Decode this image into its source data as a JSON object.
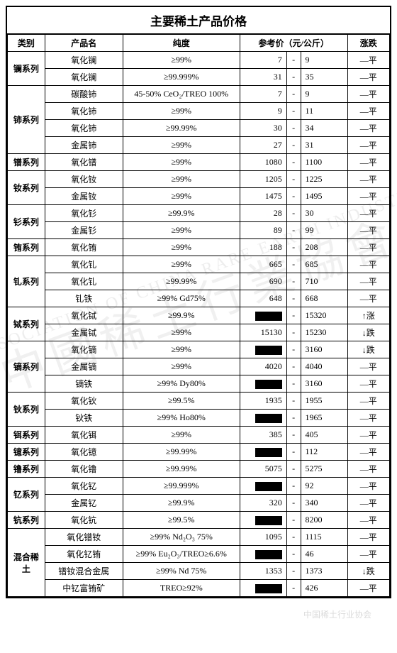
{
  "title": "主要稀土产品价格",
  "headers": {
    "category": "类别",
    "product": "产品名",
    "purity": "纯度",
    "price": "参考价（元/公斤）",
    "trend": "涨跌"
  },
  "trend_labels": {
    "flat": "—平",
    "up": "↑涨",
    "down": "↓跌"
  },
  "watermark_main": "中國稀土行業協會",
  "watermark_sub": "ASSOCIATION OF CHINA RARE EARTH INDUSTRY",
  "footer_line1": "中国稀土行业协会",
  "footer_line2": "",
  "groups": [
    {
      "category": "镧系列",
      "rows": [
        {
          "name": "氧化镧",
          "purity": "≥99%",
          "low": "7",
          "high": "9",
          "trend": "flat"
        },
        {
          "name": "氧化镧",
          "purity": "≥99.999%",
          "low": "31",
          "high": "35",
          "trend": "flat"
        }
      ]
    },
    {
      "category": "铈系列",
      "rows": [
        {
          "name": "碳酸铈",
          "purity": "45-50% CeO₂/TREO 100%",
          "low": "7",
          "high": "9",
          "trend": "flat"
        },
        {
          "name": "氧化铈",
          "purity": "≥99%",
          "low": "9",
          "high": "11",
          "trend": "flat"
        },
        {
          "name": "氧化铈",
          "purity": "≥99.99%",
          "low": "30",
          "high": "34",
          "trend": "flat"
        },
        {
          "name": "金属铈",
          "purity": "≥99%",
          "low": "27",
          "high": "31",
          "trend": "flat"
        }
      ]
    },
    {
      "category": "镨系列",
      "rows": [
        {
          "name": "氧化镨",
          "purity": "≥99%",
          "low": "1080",
          "high": "1100",
          "trend": "flat"
        }
      ]
    },
    {
      "category": "钕系列",
      "rows": [
        {
          "name": "氧化钕",
          "purity": "≥99%",
          "low": "1205",
          "high": "1225",
          "trend": "flat"
        },
        {
          "name": "金属钕",
          "purity": "≥99%",
          "low": "1475",
          "high": "1495",
          "trend": "flat"
        }
      ]
    },
    {
      "category": "钐系列",
      "rows": [
        {
          "name": "氧化钐",
          "purity": "≥99.9%",
          "low": "28",
          "high": "30",
          "trend": "flat"
        },
        {
          "name": "金属钐",
          "purity": "≥99%",
          "low": "89",
          "high": "99",
          "trend": "flat"
        }
      ]
    },
    {
      "category": "铕系列",
      "rows": [
        {
          "name": "氧化铕",
          "purity": "≥99%",
          "low": "188",
          "high": "208",
          "trend": "flat"
        }
      ]
    },
    {
      "category": "钆系列",
      "rows": [
        {
          "name": "氧化钆",
          "purity": "≥99%",
          "low": "665",
          "high": "685",
          "trend": "flat"
        },
        {
          "name": "氧化钆",
          "purity": "≥99.99%",
          "low": "690",
          "high": "710",
          "trend": "flat"
        },
        {
          "name": "钆铁",
          "purity": "≥99% Gd75%",
          "low": "648",
          "high": "668",
          "trend": "flat"
        }
      ]
    },
    {
      "category": "铽系列",
      "rows": [
        {
          "name": "氧化铽",
          "purity": "≥99.9%",
          "low": null,
          "high": "15320",
          "trend": "up"
        },
        {
          "name": "金属铽",
          "purity": "≥99%",
          "low": "15130",
          "high": "15230",
          "trend": "down"
        }
      ]
    },
    {
      "category": "镝系列",
      "rows": [
        {
          "name": "氧化镝",
          "purity": "≥99%",
          "low": null,
          "high": "3160",
          "trend": "down"
        },
        {
          "name": "金属镝",
          "purity": "≥99%",
          "low": "4020",
          "high": "4040",
          "trend": "flat"
        },
        {
          "name": "镝铁",
          "purity": "≥99% Dy80%",
          "low": null,
          "high": "3160",
          "trend": "flat"
        }
      ]
    },
    {
      "category": "钬系列",
      "rows": [
        {
          "name": "氧化钬",
          "purity": "≥99.5%",
          "low": "1935",
          "high": "1955",
          "trend": "flat"
        },
        {
          "name": "钬铁",
          "purity": "≥99% Ho80%",
          "low": null,
          "high": "1965",
          "trend": "flat"
        }
      ]
    },
    {
      "category": "铒系列",
      "rows": [
        {
          "name": "氧化铒",
          "purity": "≥99%",
          "low": "385",
          "high": "405",
          "trend": "flat"
        }
      ]
    },
    {
      "category": "镱系列",
      "rows": [
        {
          "name": "氧化镱",
          "purity": "≥99.99%",
          "low": null,
          "high": "112",
          "trend": "flat"
        }
      ]
    },
    {
      "category": "镥系列",
      "rows": [
        {
          "name": "氧化镥",
          "purity": "≥99.99%",
          "low": "5075",
          "high": "5275",
          "trend": "flat"
        }
      ]
    },
    {
      "category": "钇系列",
      "rows": [
        {
          "name": "氧化钇",
          "purity": "≥99.999%",
          "low": null,
          "high": "92",
          "trend": "flat"
        },
        {
          "name": "金属钇",
          "purity": "≥99.9%",
          "low": "320",
          "high": "340",
          "trend": "flat"
        }
      ]
    },
    {
      "category": "钪系列",
      "rows": [
        {
          "name": "氧化钪",
          "purity": "≥99.5%",
          "low": null,
          "high": "8200",
          "trend": "flat"
        }
      ]
    },
    {
      "category": "混合稀土",
      "rows": [
        {
          "name": "氧化镨钕",
          "purity": "≥99%  Nd₂O₃  75%",
          "low": "1095",
          "high": "1115",
          "trend": "flat"
        },
        {
          "name": "氧化钇铕",
          "purity": "≥99% Eu₂O₃/TREO≥6.6%",
          "low": null,
          "high": "46",
          "trend": "flat"
        },
        {
          "name": "镨钕混合金属",
          "purity": "≥99% Nd 75%",
          "low": "1353",
          "high": "1373",
          "trend": "down"
        },
        {
          "name": "中钇富铕矿",
          "purity": "TREO≥92%",
          "low": null,
          "high": "426",
          "trend": "flat"
        }
      ]
    }
  ]
}
